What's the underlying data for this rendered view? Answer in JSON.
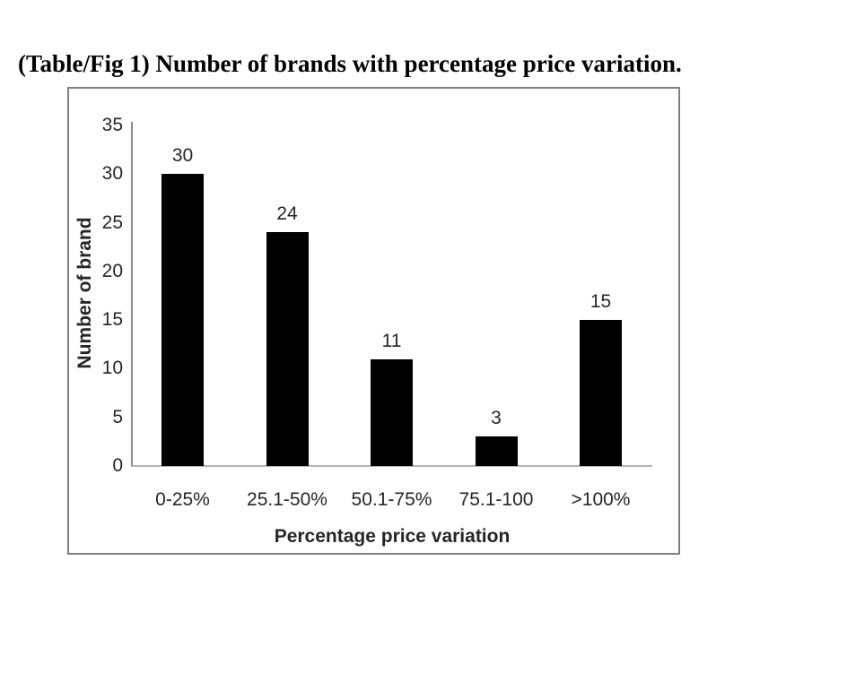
{
  "page": {
    "title": "(Table/Fig 1) Number of brands with percentage price variation."
  },
  "chart_data": {
    "type": "bar",
    "title": "(Table/Fig 1) Number of brands with percentage price variation.",
    "categories": [
      "0-25%",
      "25.1-50%",
      "50.1-75%",
      "75.1-100",
      ">100%"
    ],
    "values": [
      30,
      24,
      11,
      3,
      15
    ],
    "xlabel": "Percentage price variation",
    "ylabel": "Number of brand",
    "ylim": [
      0,
      35
    ],
    "ytick_step": 5,
    "data_labels": true,
    "grid": false,
    "legend": false,
    "bar_color": "#000000"
  },
  "colors": {
    "bar": "#000000",
    "frame_border": "#808080",
    "y_axis_line": "#8c8c8c",
    "x_axis_line": "#b3b3b3",
    "chart_text": "#262626",
    "title_text": "#000000",
    "background": "#ffffff"
  }
}
